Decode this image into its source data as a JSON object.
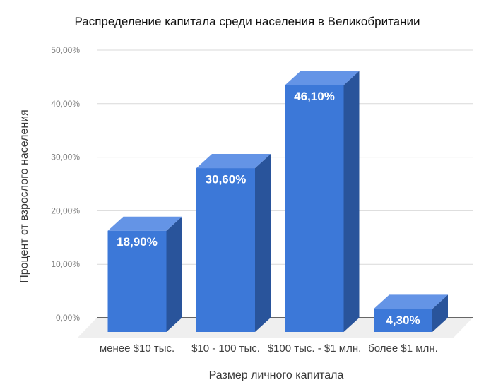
{
  "chart_data": {
    "type": "bar",
    "style": "3d-column",
    "title": "Распределение капитала среди населения в Великобритании",
    "xlabel": "Размер личного капитала",
    "ylabel": "Процент от взрослого населения",
    "categories": [
      "менее $10 тыс.",
      "$10  - 100 тыс.",
      "$100 тыс. - $1 млн.",
      "более $1 млн."
    ],
    "values": [
      18.9,
      30.6,
      46.1,
      4.3
    ],
    "value_labels": [
      "18,90%",
      "30,60%",
      "46,10%",
      "4,30%"
    ],
    "y_ticks": [
      {
        "value": 0,
        "label": "0,00%"
      },
      {
        "value": 10,
        "label": "10,00%"
      },
      {
        "value": 20,
        "label": "20,00%"
      },
      {
        "value": 30,
        "label": "30,00%"
      },
      {
        "value": 40,
        "label": "40,00%"
      },
      {
        "value": 50,
        "label": "50,00%"
      }
    ],
    "ylim": [
      0,
      50
    ],
    "grid": true,
    "legend": "none",
    "colors": {
      "bar_front": "#3c78d8",
      "bar_top": "#6494e6",
      "bar_side": "#29549b",
      "grid": "#d9d9d9",
      "axis_line": "#333333",
      "floor": "#efefef",
      "tick_text": "#808080",
      "category_text": "#404040",
      "bar_label_text": "#ffffff",
      "background": "#ffffff"
    }
  }
}
